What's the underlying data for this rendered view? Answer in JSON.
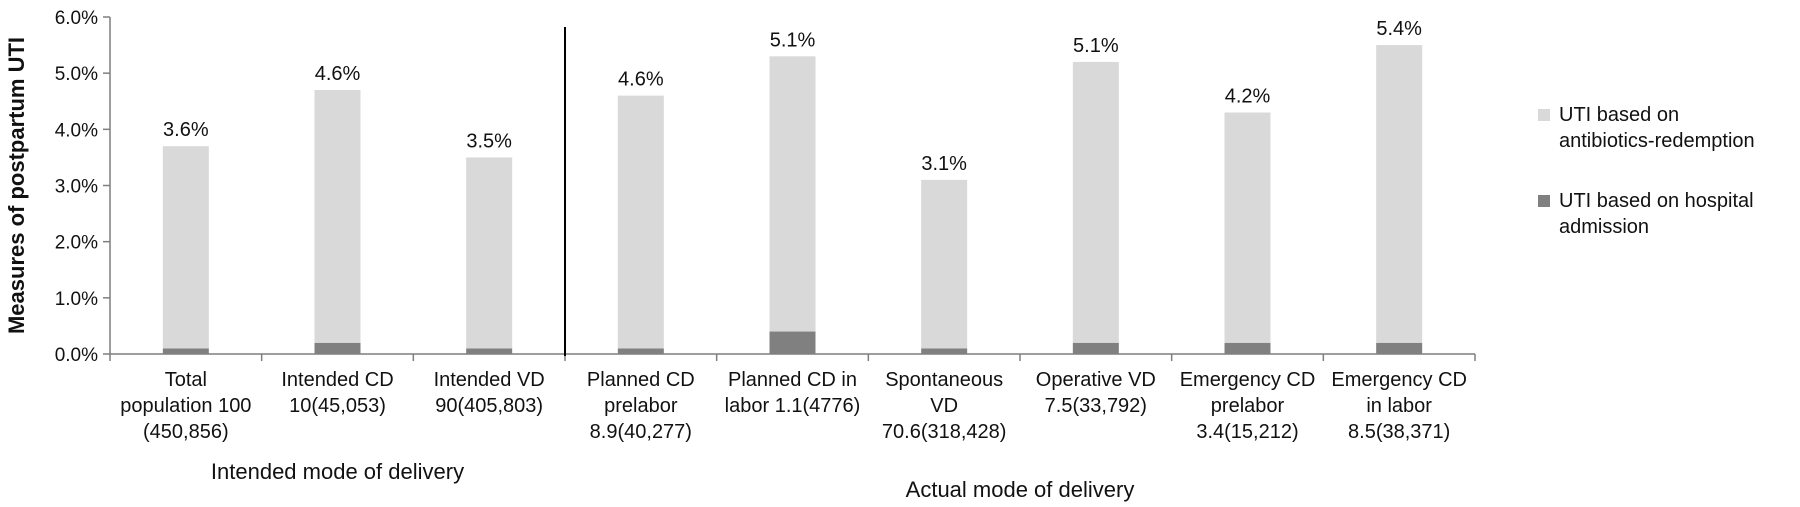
{
  "chart_data": {
    "type": "bar",
    "stacked": true,
    "ylabel": "Measures of postpartum UTI",
    "ylim": [
      0,
      6.0
    ],
    "y_ticks": [
      "0.0%",
      "1.0%",
      "2.0%",
      "3.0%",
      "4.0%",
      "5.0%",
      "6.0%"
    ],
    "y_unit": "%",
    "categories": [
      [
        "Total",
        "population 100",
        "(450,856)"
      ],
      [
        "Intended CD",
        "10(45,053)"
      ],
      [
        "Intended  VD",
        "90(405,803)"
      ],
      [
        "Planned CD",
        "prelabor",
        "8.9(40,277)"
      ],
      [
        "Planned CD in",
        "labor 1.1(4776)"
      ],
      [
        "Spontaneous",
        "VD",
        "70.6(318,428)"
      ],
      [
        "Operative VD",
        "7.5(33,792)"
      ],
      [
        "Emergency CD",
        "prelabor",
        "3.4(15,212)"
      ],
      [
        "Emergency CD",
        "in labor",
        "8.5(38,371)"
      ]
    ],
    "series": [
      {
        "name": "UTI based on hospital admission",
        "color": "#808080",
        "values": [
          0.1,
          0.2,
          0.1,
          0.1,
          0.4,
          0.1,
          0.2,
          0.2,
          0.2
        ]
      },
      {
        "name": "UTI based on antibiotics-redemption",
        "color": "#d9d9d9",
        "values": [
          3.6,
          4.5,
          3.4,
          4.5,
          4.9,
          3.0,
          5.0,
          4.1,
          5.3
        ]
      }
    ],
    "data_labels": [
      "3.6%",
      "4.6%",
      "3.5%",
      "4.6%",
      "5.1%",
      "3.1%",
      "5.1%",
      "4.2%",
      "5.4%"
    ],
    "groups": [
      {
        "label": "Intended mode of delivery",
        "categories": [
          0,
          1,
          2
        ]
      },
      {
        "label": "Actual mode of delivery",
        "categories": [
          3,
          4,
          5,
          6,
          7,
          8
        ]
      }
    ],
    "legend": [
      {
        "lines": [
          "UTI based on",
          "antibiotics-redemption"
        ],
        "color": "#d9d9d9"
      },
      {
        "lines": [
          "UTI based on hospital",
          "admission"
        ],
        "color": "#808080"
      }
    ],
    "legend_position": "right",
    "grid": false
  }
}
